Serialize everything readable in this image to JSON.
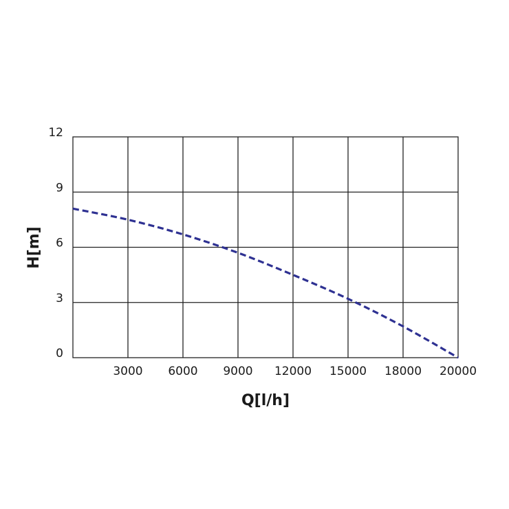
{
  "chart_data": {
    "type": "line",
    "xlabel": "Q[l/h]",
    "ylabel": "H[m]",
    "xlim": [
      0,
      21000
    ],
    "ylim": [
      0,
      12
    ],
    "x_ticks": [
      3000,
      6000,
      9000,
      12000,
      15000,
      18000,
      20000
    ],
    "x_tick_labels": [
      "3000",
      "6000",
      "9000",
      "12000",
      "15000",
      "18000",
      "20000"
    ],
    "y_ticks": [
      0,
      3,
      6,
      9,
      12
    ],
    "y_tick_labels": [
      "0",
      "3",
      "6",
      "9",
      "12"
    ],
    "grid": true,
    "colors": {
      "line": "#2e3192",
      "grid": "#222222"
    },
    "series": [
      {
        "x": [
          0,
          3000,
          6000,
          9000,
          12000,
          15000,
          18000,
          21000
        ],
        "y": [
          8.1,
          7.5,
          6.7,
          5.7,
          4.5,
          3.2,
          1.7,
          0
        ]
      }
    ]
  }
}
